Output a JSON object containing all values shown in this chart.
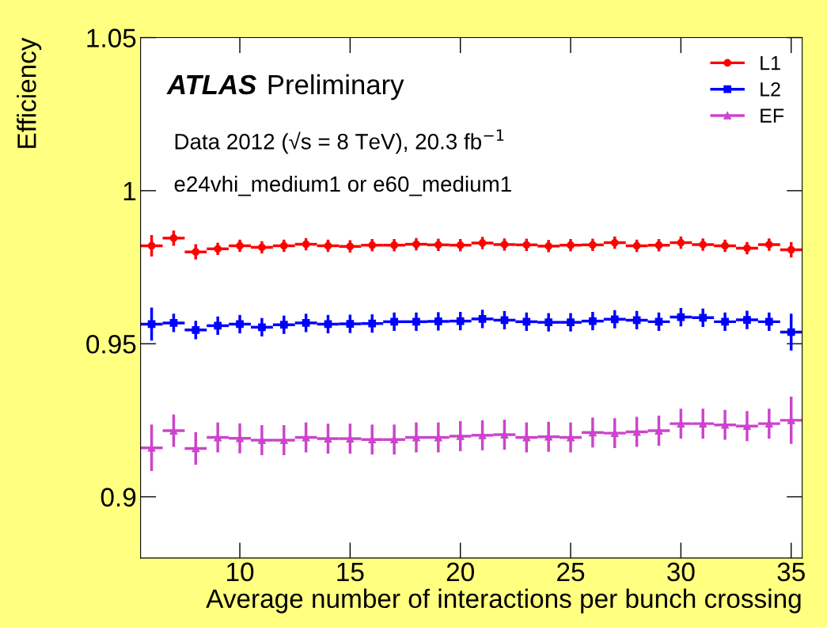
{
  "chart_data": {
    "type": "scatter",
    "xlabel": "Average number of interactions per bunch crossing",
    "ylabel": "Efficiency",
    "annotations": [
      "ATLAS",
      "Preliminary",
      "Data 2012 (√s = 8 TeV), 20.3 fb$^{−1}$",
      "e24vhi_medium1 or e60_medium1"
    ],
    "x": [
      6,
      7,
      8,
      9,
      10,
      11,
      12,
      13,
      14,
      15,
      16,
      17,
      18,
      19,
      20,
      21,
      22,
      23,
      24,
      25,
      26,
      27,
      28,
      29,
      30,
      31,
      32,
      33,
      34,
      35
    ],
    "series": [
      {
        "name": "L1",
        "color": "#ff0000",
        "marker": "circle",
        "xerrors": [
          0.5,
          0.5,
          0.5,
          0.5,
          0.5,
          0.5,
          0.5,
          0.5,
          0.5,
          0.5,
          0.5,
          0.5,
          0.5,
          0.5,
          0.5,
          0.5,
          0.5,
          0.5,
          0.5,
          0.5,
          0.5,
          0.5,
          0.5,
          0.5,
          0.5,
          0.5,
          0.5,
          0.5,
          0.5,
          0.5
        ],
        "values": [
          0.982,
          0.9845,
          0.98,
          0.981,
          0.982,
          0.9815,
          0.982,
          0.9825,
          0.982,
          0.9818,
          0.9822,
          0.9822,
          0.9825,
          0.9823,
          0.9822,
          0.9829,
          0.9824,
          0.9823,
          0.9819,
          0.9822,
          0.9823,
          0.983,
          0.982,
          0.9822,
          0.983,
          0.9824,
          0.982,
          0.9812,
          0.9824,
          0.9807
        ],
        "errors": [
          0.0035,
          0.0025,
          0.0025,
          0.002,
          0.002,
          0.002,
          0.002,
          0.002,
          0.002,
          0.002,
          0.002,
          0.002,
          0.002,
          0.002,
          0.002,
          0.002,
          0.002,
          0.002,
          0.002,
          0.002,
          0.002,
          0.002,
          0.002,
          0.002,
          0.002,
          0.002,
          0.002,
          0.002,
          0.002,
          0.0025
        ]
      },
      {
        "name": "L2",
        "color": "#0000ff",
        "marker": "square",
        "xerrors": [
          0.5,
          0.5,
          0.5,
          0.5,
          0.5,
          0.5,
          0.5,
          0.5,
          0.5,
          0.5,
          0.5,
          0.5,
          0.5,
          0.5,
          0.5,
          0.5,
          0.5,
          0.5,
          0.5,
          0.5,
          0.5,
          0.5,
          0.5,
          0.5,
          0.5,
          0.5,
          0.5,
          0.5,
          0.5,
          0.5
        ],
        "values": [
          0.9564,
          0.9568,
          0.9545,
          0.9559,
          0.9564,
          0.9554,
          0.9562,
          0.9568,
          0.9564,
          0.9565,
          0.9566,
          0.9572,
          0.9572,
          0.9573,
          0.9574,
          0.9581,
          0.9577,
          0.9572,
          0.957,
          0.957,
          0.9574,
          0.958,
          0.9577,
          0.9572,
          0.9587,
          0.9585,
          0.9572,
          0.9578,
          0.9572,
          0.9538
        ],
        "errors": [
          0.0054,
          0.003,
          0.003,
          0.003,
          0.003,
          0.003,
          0.003,
          0.003,
          0.003,
          0.003,
          0.003,
          0.003,
          0.003,
          0.003,
          0.003,
          0.003,
          0.003,
          0.003,
          0.003,
          0.003,
          0.003,
          0.003,
          0.003,
          0.003,
          0.003,
          0.003,
          0.003,
          0.003,
          0.003,
          0.006
        ]
      },
      {
        "name": "EF",
        "color": "#cc44cc",
        "marker": "triangle",
        "xerrors": [
          0.5,
          0.5,
          0.5,
          0.5,
          0.5,
          0.5,
          0.5,
          0.5,
          0.5,
          0.5,
          0.5,
          0.5,
          0.5,
          0.5,
          0.5,
          0.5,
          0.5,
          0.5,
          0.5,
          0.5,
          0.5,
          0.5,
          0.5,
          0.5,
          0.5,
          0.5,
          0.5,
          0.5,
          0.5,
          0.5
        ],
        "values": [
          0.916,
          0.9216,
          0.9158,
          0.9194,
          0.9191,
          0.9185,
          0.9185,
          0.9194,
          0.919,
          0.919,
          0.9187,
          0.9187,
          0.9194,
          0.9194,
          0.9198,
          0.9201,
          0.9203,
          0.9194,
          0.9196,
          0.9194,
          0.921,
          0.9208,
          0.9212,
          0.9216,
          0.9239,
          0.9239,
          0.9235,
          0.9231,
          0.9239,
          0.925
        ],
        "errors": [
          0.0076,
          0.0053,
          0.0053,
          0.0049,
          0.0049,
          0.0049,
          0.0049,
          0.0049,
          0.0049,
          0.0049,
          0.0049,
          0.0049,
          0.0049,
          0.0049,
          0.0049,
          0.0049,
          0.0049,
          0.0049,
          0.0049,
          0.0049,
          0.0049,
          0.0049,
          0.0049,
          0.0049,
          0.0049,
          0.0049,
          0.0049,
          0.0049,
          0.0049,
          0.0077
        ]
      }
    ],
    "xlim": [
      5.5,
      35.5
    ],
    "ylim": [
      0.88,
      1.05
    ],
    "xticks": [
      10,
      15,
      20,
      25,
      30,
      35
    ],
    "yticks": [
      0.9,
      0.95,
      1,
      1.05
    ],
    "grid": false,
    "legend": "top right"
  }
}
